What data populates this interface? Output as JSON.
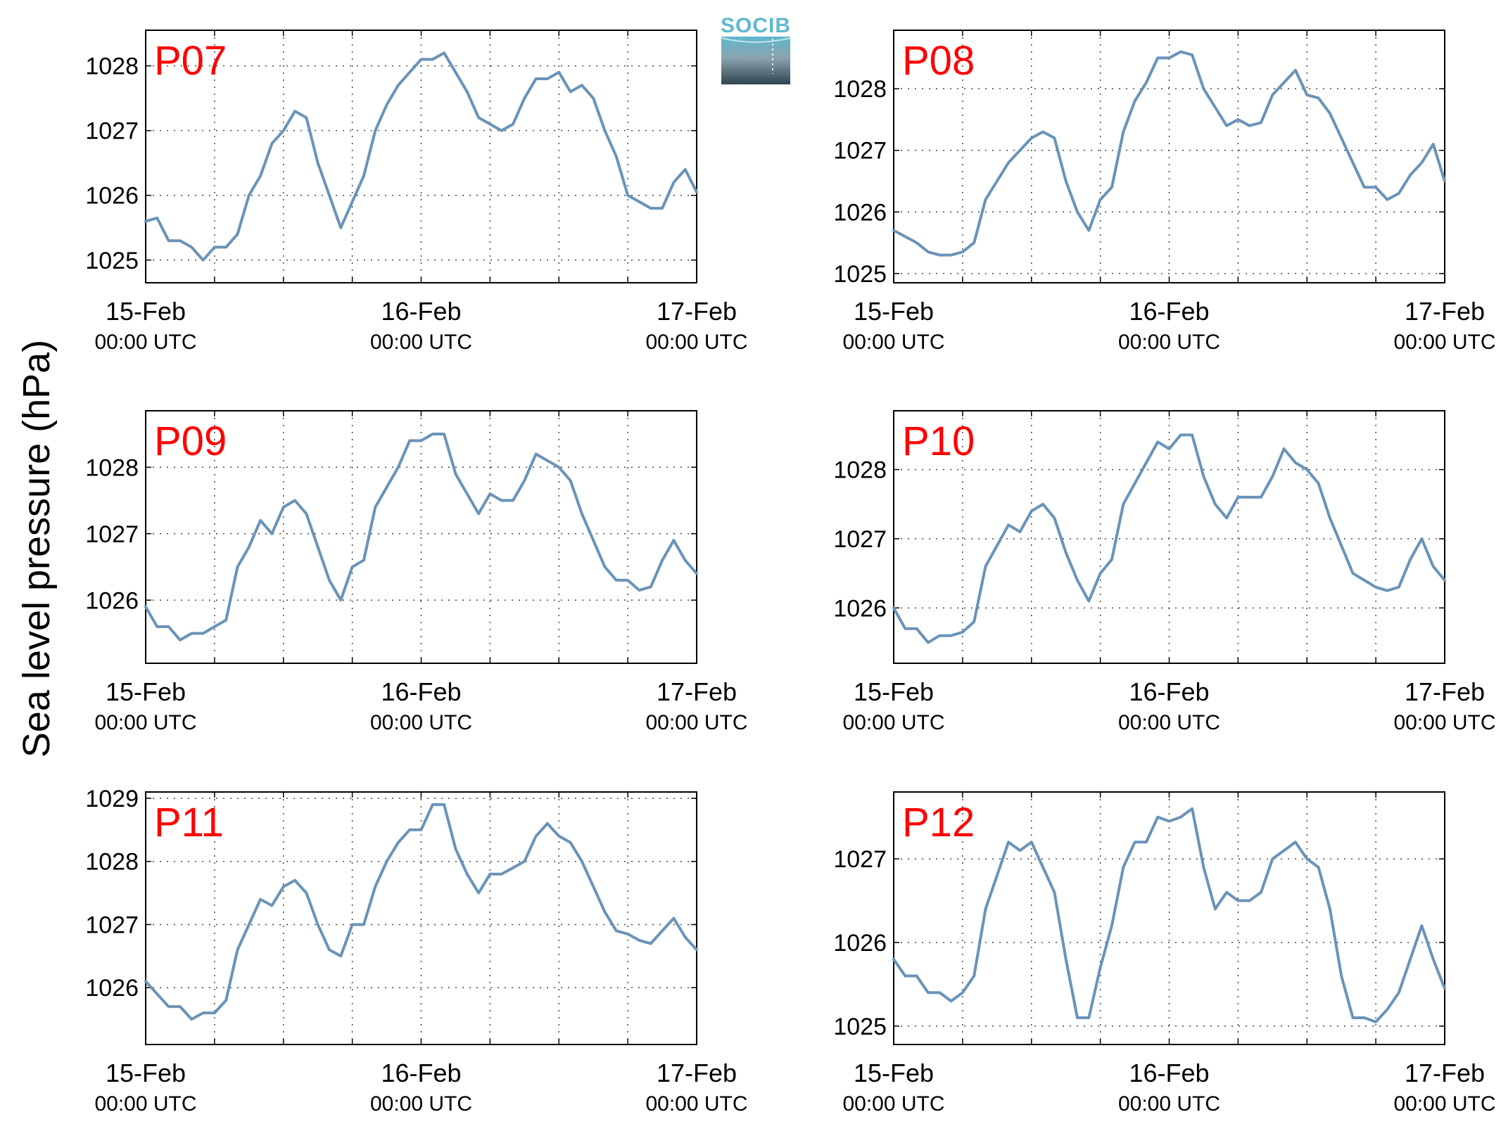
{
  "figure": {
    "ylabel": "Sea level pressure (hPa)",
    "logo": {
      "text": "SOCIB",
      "color_top": "#5fb8cf",
      "color_bottom": "#2f4550"
    },
    "line_color": "#6a93b8",
    "label_color": "#ff0000"
  },
  "chart_data": [
    {
      "type": "line",
      "station": "P07",
      "x_ticks": [
        {
          "date": "15-Feb",
          "time": "00:00 UTC"
        },
        {
          "date": "16-Feb",
          "time": "00:00 UTC"
        },
        {
          "date": "17-Feb",
          "time": "00:00 UTC"
        }
      ],
      "xlim_hours": [
        0,
        48
      ],
      "ylim": [
        1024.65,
        1028.55
      ],
      "yticks": [
        1025,
        1026,
        1027,
        1028
      ],
      "grid": true,
      "series": [
        {
          "x_hours": [
            0,
            1,
            2,
            3,
            4,
            5,
            6,
            7,
            8,
            9,
            10,
            11,
            12,
            13,
            14,
            15,
            16,
            17,
            18,
            19,
            20,
            21,
            22,
            23,
            24,
            25,
            26,
            27,
            28,
            29,
            30,
            31,
            32,
            33,
            34,
            35,
            36,
            37,
            38,
            39,
            40,
            41,
            42,
            43,
            44,
            45,
            46,
            47,
            48
          ],
          "values": [
            1025.6,
            1025.65,
            1025.3,
            1025.3,
            1025.2,
            1025.0,
            1025.2,
            1025.2,
            1025.4,
            1026.0,
            1026.3,
            1026.8,
            1027.0,
            1027.3,
            1027.2,
            1026.5,
            1026.0,
            1025.5,
            1025.9,
            1026.3,
            1027.0,
            1027.4,
            1027.7,
            1027.9,
            1028.1,
            1028.1,
            1028.2,
            1027.9,
            1027.6,
            1027.2,
            1027.1,
            1027.0,
            1027.1,
            1027.5,
            1027.8,
            1027.8,
            1027.9,
            1027.6,
            1027.7,
            1027.5,
            1027.0,
            1026.6,
            1026.0,
            1025.9,
            1025.8,
            1025.8,
            1026.2,
            1026.4,
            1026.05
          ]
        }
      ]
    },
    {
      "type": "line",
      "station": "P08",
      "x_ticks": [
        {
          "date": "15-Feb",
          "time": "00:00 UTC"
        },
        {
          "date": "16-Feb",
          "time": "00:00 UTC"
        },
        {
          "date": "17-Feb",
          "time": "00:00 UTC"
        }
      ],
      "xlim_hours": [
        0,
        48
      ],
      "ylim": [
        1024.85,
        1028.95
      ],
      "yticks": [
        1025,
        1026,
        1027,
        1028
      ],
      "grid": true,
      "series": [
        {
          "x_hours": [
            0,
            1,
            2,
            3,
            4,
            5,
            6,
            7,
            8,
            9,
            10,
            11,
            12,
            13,
            14,
            15,
            16,
            17,
            18,
            19,
            20,
            21,
            22,
            23,
            24,
            25,
            26,
            27,
            28,
            29,
            30,
            31,
            32,
            33,
            34,
            35,
            36,
            37,
            38,
            39,
            40,
            41,
            42,
            43,
            44,
            45,
            46,
            47,
            48
          ],
          "values": [
            1025.7,
            1025.6,
            1025.5,
            1025.35,
            1025.3,
            1025.3,
            1025.35,
            1025.5,
            1026.2,
            1026.5,
            1026.8,
            1027.0,
            1027.2,
            1027.3,
            1027.2,
            1026.5,
            1026.0,
            1025.7,
            1026.2,
            1026.4,
            1027.3,
            1027.8,
            1028.1,
            1028.5,
            1028.5,
            1028.6,
            1028.55,
            1028.0,
            1027.7,
            1027.4,
            1027.5,
            1027.4,
            1027.45,
            1027.9,
            1028.1,
            1028.3,
            1027.9,
            1027.85,
            1027.6,
            1027.2,
            1026.8,
            1026.4,
            1026.4,
            1026.2,
            1026.3,
            1026.6,
            1026.8,
            1027.1,
            1026.5
          ]
        }
      ]
    },
    {
      "type": "line",
      "station": "P09",
      "x_ticks": [
        {
          "date": "15-Feb",
          "time": "00:00 UTC"
        },
        {
          "date": "16-Feb",
          "time": "00:00 UTC"
        },
        {
          "date": "17-Feb",
          "time": "00:00 UTC"
        }
      ],
      "xlim_hours": [
        0,
        48
      ],
      "ylim": [
        1025.05,
        1028.85
      ],
      "yticks": [
        1026,
        1027,
        1028
      ],
      "grid": true,
      "series": [
        {
          "x_hours": [
            0,
            1,
            2,
            3,
            4,
            5,
            6,
            7,
            8,
            9,
            10,
            11,
            12,
            13,
            14,
            15,
            16,
            17,
            18,
            19,
            20,
            21,
            22,
            23,
            24,
            25,
            26,
            27,
            28,
            29,
            30,
            31,
            32,
            33,
            34,
            35,
            36,
            37,
            38,
            39,
            40,
            41,
            42,
            43,
            44,
            45,
            46,
            47,
            48
          ],
          "values": [
            1025.9,
            1025.6,
            1025.6,
            1025.4,
            1025.5,
            1025.5,
            1025.6,
            1025.7,
            1026.5,
            1026.8,
            1027.2,
            1027.0,
            1027.4,
            1027.5,
            1027.3,
            1026.8,
            1026.3,
            1026.0,
            1026.5,
            1026.6,
            1027.4,
            1027.7,
            1028.0,
            1028.4,
            1028.4,
            1028.5,
            1028.5,
            1027.9,
            1027.6,
            1027.3,
            1027.6,
            1027.5,
            1027.5,
            1027.8,
            1028.2,
            1028.1,
            1028.0,
            1027.8,
            1027.3,
            1026.9,
            1026.5,
            1026.3,
            1026.3,
            1026.15,
            1026.2,
            1026.6,
            1026.9,
            1026.6,
            1026.4
          ]
        }
      ]
    },
    {
      "type": "line",
      "station": "P10",
      "x_ticks": [
        {
          "date": "15-Feb",
          "time": "00:00 UTC"
        },
        {
          "date": "16-Feb",
          "time": "00:00 UTC"
        },
        {
          "date": "17-Feb",
          "time": "00:00 UTC"
        }
      ],
      "xlim_hours": [
        0,
        48
      ],
      "ylim": [
        1025.2,
        1028.85
      ],
      "yticks": [
        1026,
        1027,
        1028
      ],
      "grid": true,
      "series": [
        {
          "x_hours": [
            0,
            1,
            2,
            3,
            4,
            5,
            6,
            7,
            8,
            9,
            10,
            11,
            12,
            13,
            14,
            15,
            16,
            17,
            18,
            19,
            20,
            21,
            22,
            23,
            24,
            25,
            26,
            27,
            28,
            29,
            30,
            31,
            32,
            33,
            34,
            35,
            36,
            37,
            38,
            39,
            40,
            41,
            42,
            43,
            44,
            45,
            46,
            47,
            48
          ],
          "values": [
            1026.0,
            1025.7,
            1025.7,
            1025.5,
            1025.6,
            1025.6,
            1025.65,
            1025.8,
            1026.6,
            1026.9,
            1027.2,
            1027.1,
            1027.4,
            1027.5,
            1027.3,
            1026.8,
            1026.4,
            1026.1,
            1026.5,
            1026.7,
            1027.5,
            1027.8,
            1028.1,
            1028.4,
            1028.3,
            1028.5,
            1028.5,
            1027.9,
            1027.5,
            1027.3,
            1027.6,
            1027.6,
            1027.6,
            1027.9,
            1028.3,
            1028.1,
            1028.0,
            1027.8,
            1027.3,
            1026.9,
            1026.5,
            1026.4,
            1026.3,
            1026.25,
            1026.3,
            1026.7,
            1027.0,
            1026.6,
            1026.4
          ]
        }
      ]
    },
    {
      "type": "line",
      "station": "P11",
      "x_ticks": [
        {
          "date": "15-Feb",
          "time": "00:00 UTC"
        },
        {
          "date": "16-Feb",
          "time": "00:00 UTC"
        },
        {
          "date": "17-Feb",
          "time": "00:00 UTC"
        }
      ],
      "xlim_hours": [
        0,
        48
      ],
      "ylim": [
        1025.1,
        1029.1
      ],
      "yticks": [
        1026,
        1027,
        1028,
        1029
      ],
      "grid": true,
      "series": [
        {
          "x_hours": [
            0,
            1,
            2,
            3,
            4,
            5,
            6,
            7,
            8,
            9,
            10,
            11,
            12,
            13,
            14,
            15,
            16,
            17,
            18,
            19,
            20,
            21,
            22,
            23,
            24,
            25,
            26,
            27,
            28,
            29,
            30,
            31,
            32,
            33,
            34,
            35,
            36,
            37,
            38,
            39,
            40,
            41,
            42,
            43,
            44,
            45,
            46,
            47,
            48
          ],
          "values": [
            1026.1,
            1025.9,
            1025.7,
            1025.7,
            1025.5,
            1025.6,
            1025.6,
            1025.8,
            1026.6,
            1027.0,
            1027.4,
            1027.3,
            1027.6,
            1027.7,
            1027.5,
            1027.0,
            1026.6,
            1026.5,
            1027.0,
            1027.0,
            1027.6,
            1028.0,
            1028.3,
            1028.5,
            1028.5,
            1028.9,
            1028.9,
            1028.2,
            1027.8,
            1027.5,
            1027.8,
            1027.8,
            1027.9,
            1028.0,
            1028.4,
            1028.6,
            1028.4,
            1028.3,
            1028.0,
            1027.6,
            1027.2,
            1026.9,
            1026.85,
            1026.75,
            1026.7,
            1026.9,
            1027.1,
            1026.8,
            1026.6
          ]
        }
      ]
    },
    {
      "type": "line",
      "station": "P12",
      "x_ticks": [
        {
          "date": "15-Feb",
          "time": "00:00 UTC"
        },
        {
          "date": "16-Feb",
          "time": "00:00 UTC"
        },
        {
          "date": "17-Feb",
          "time": "00:00 UTC"
        }
      ],
      "xlim_hours": [
        0,
        48
      ],
      "ylim": [
        1024.78,
        1027.8
      ],
      "yticks": [
        1025,
        1026,
        1027
      ],
      "grid": true,
      "series": [
        {
          "x_hours": [
            0,
            1,
            2,
            3,
            4,
            5,
            6,
            7,
            8,
            9,
            10,
            11,
            12,
            13,
            14,
            15,
            16,
            17,
            18,
            19,
            20,
            21,
            22,
            23,
            24,
            25,
            26,
            27,
            28,
            29,
            30,
            31,
            32,
            33,
            34,
            35,
            36,
            37,
            38,
            39,
            40,
            41,
            42,
            43,
            44,
            45,
            46,
            47,
            48
          ],
          "values": [
            1025.8,
            1025.6,
            1025.6,
            1025.4,
            1025.4,
            1025.3,
            1025.4,
            1025.6,
            1026.4,
            1026.8,
            1027.2,
            1027.1,
            1027.2,
            1026.9,
            1026.6,
            1025.8,
            1025.1,
            1025.1,
            1025.7,
            1026.2,
            1026.9,
            1027.2,
            1027.2,
            1027.5,
            1027.45,
            1027.5,
            1027.6,
            1026.9,
            1026.4,
            1026.6,
            1026.5,
            1026.5,
            1026.6,
            1027.0,
            1027.1,
            1027.2,
            1027.0,
            1026.9,
            1026.4,
            1025.6,
            1025.1,
            1025.1,
            1025.05,
            1025.2,
            1025.4,
            1025.8,
            1026.2,
            1025.8,
            1025.45
          ]
        }
      ]
    }
  ]
}
